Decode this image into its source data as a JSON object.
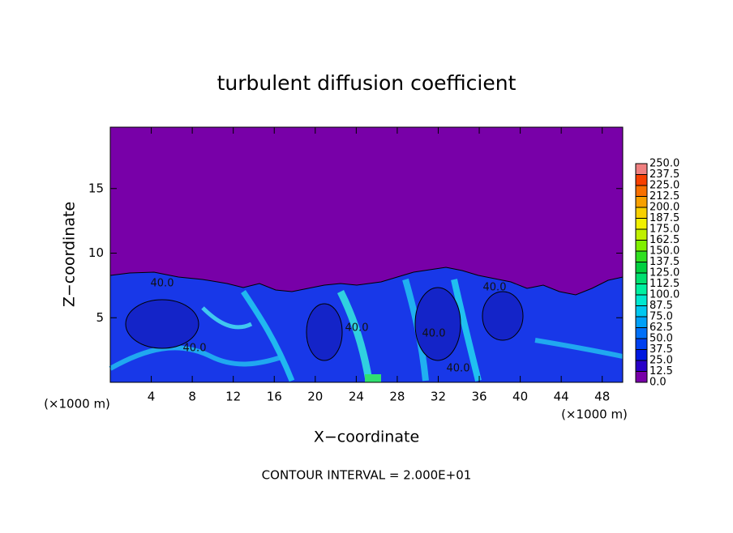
{
  "chart_data": {
    "type": "contour",
    "title": "turbulent diffusion coefficient",
    "xlabel": "X−coordinate",
    "ylabel": "Z−coordinate",
    "x_unit_left": "(×1000 m)",
    "x_unit_right": "(×1000 m)",
    "footer": "CONTOUR INTERVAL = 2.000E+01",
    "xlim": [
      0,
      50
    ],
    "ylim": [
      0,
      19.75
    ],
    "xticks": [
      4,
      8,
      12,
      16,
      20,
      24,
      28,
      32,
      36,
      40,
      44,
      48
    ],
    "yticks": [
      5,
      10,
      15
    ],
    "contour_labels": [
      "40.0",
      "40.0",
      "40.0",
      "40.0",
      "40.0",
      "40.0"
    ],
    "colorbar": {
      "levels": [
        {
          "value": 0,
          "label": "0.0"
        },
        {
          "value": 12.5,
          "label": "12.5"
        },
        {
          "value": 25,
          "label": "25.0"
        },
        {
          "value": 37.5,
          "label": "37.5"
        },
        {
          "value": 50,
          "label": "50.0"
        },
        {
          "value": 62.5,
          "label": "62.5"
        },
        {
          "value": 75,
          "label": "75.0"
        },
        {
          "value": 87.5,
          "label": "87.5"
        },
        {
          "value": 100,
          "label": "100.0"
        },
        {
          "value": 112.5,
          "label": "112.5"
        },
        {
          "value": 125,
          "label": "125.0"
        },
        {
          "value": 137.5,
          "label": "137.5"
        },
        {
          "value": 150,
          "label": "150.0"
        },
        {
          "value": 162.5,
          "label": "162.5"
        },
        {
          "value": 175,
          "label": "175.0"
        },
        {
          "value": 187.5,
          "label": "187.5"
        },
        {
          "value": 200,
          "label": "200.0"
        },
        {
          "value": 212.5,
          "label": "212.5"
        },
        {
          "value": 225,
          "label": "225.0"
        },
        {
          "value": 237.5,
          "label": "237.5"
        },
        {
          "value": 250,
          "label": "250.0"
        }
      ],
      "colors": [
        "#7800a8",
        "#2800c8",
        "#0018e0",
        "#0040f0",
        "#0070f8",
        "#00a0f8",
        "#00c8f0",
        "#00e8d0",
        "#00f0a0",
        "#00e070",
        "#00d040",
        "#30e020",
        "#80f000",
        "#c0f000",
        "#f0f000",
        "#f8d000",
        "#f8a000",
        "#f87000",
        "#f84000",
        "#f08080"
      ]
    }
  }
}
